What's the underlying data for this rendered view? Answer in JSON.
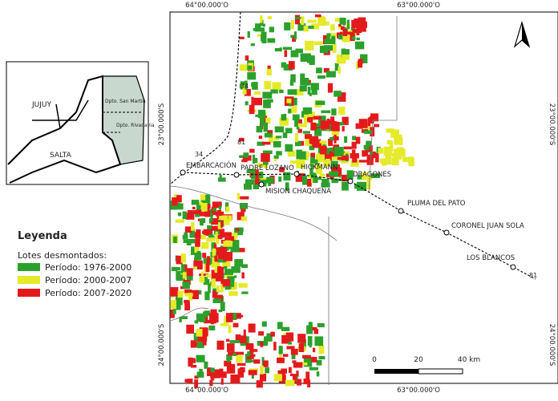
{
  "coordinates": {
    "top": [
      "64°00.000'O",
      "63°00.000'O"
    ],
    "bottom": [
      "64°00.000'O",
      "63°00.000'O"
    ],
    "left": [
      "23°00.000'S",
      "24°00.000'S"
    ],
    "right": [
      "23°00.000'S",
      "24°00.000'S"
    ]
  },
  "inset": {
    "provinces": [
      "JUJUY",
      "SALTA"
    ],
    "departments": [
      "Dpto. San Martín",
      "Dpto. Rivadavia"
    ]
  },
  "legend": {
    "title": "Leyenda",
    "subtitle": "Lotes desmontados:",
    "items": [
      {
        "label": "Período: 1976-2000",
        "color": "#2ca02c"
      },
      {
        "label": "Período: 2000-2007",
        "color": "#e5ea2a"
      },
      {
        "label": "Período: 2007-2020",
        "color": "#e31a1c"
      }
    ]
  },
  "places": [
    "EMBARCACIÓN",
    "PADRE LOZANO",
    "HICKMANN",
    "DRAGONES",
    "MISION CHAQUEÑA",
    "PLUMA DEL PATO",
    "CORONEL JUAN SOLA",
    "LOS BLANCOS"
  ],
  "roads": [
    "34",
    "34",
    "81",
    "81"
  ],
  "scale": [
    "0",
    "20",
    "40 km"
  ]
}
